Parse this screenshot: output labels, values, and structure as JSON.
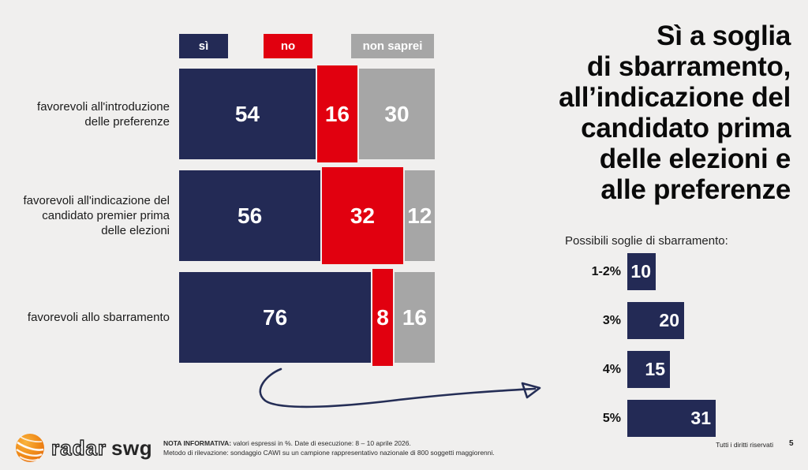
{
  "title": {
    "text": "Sì a soglia\ndi sbarramento,\nall’indicazione del\ncandidato prima\ndelle elezioni e\nalle preferenze"
  },
  "colors": {
    "navy": "#232a55",
    "red": "#e1000f",
    "gray": "#a6a6a6",
    "background": "#f0efee",
    "ink": "#0a0a0a"
  },
  "legend": [
    {
      "label": "sì",
      "color": "#232a55"
    },
    {
      "label": "no",
      "color": "#e1000f"
    },
    {
      "label": "non saprei",
      "color": "#a6a6a6"
    }
  ],
  "chart_data": [
    {
      "type": "bar",
      "subtype": "horizontal-stacked",
      "unit": "%",
      "xlim": [
        0,
        100
      ],
      "categories": [
        "favorevoli all'introduzione\ndelle preferenze",
        "favorevoli all'indicazione del\ncandidato premier prima\ndelle elezioni",
        "favorevoli allo sbarramento"
      ],
      "series": [
        {
          "name": "sì",
          "color": "#232a55",
          "values": [
            54,
            56,
            76
          ]
        },
        {
          "name": "no",
          "color": "#e1000f",
          "values": [
            16,
            32,
            8
          ]
        },
        {
          "name": "non saprei",
          "color": "#a6a6a6",
          "values": [
            30,
            12,
            16
          ]
        }
      ],
      "legend_position": "top"
    },
    {
      "type": "bar",
      "subtype": "horizontal",
      "title": "Possibili soglie di sbarramento:",
      "categories": [
        "1-2%",
        "3%",
        "4%",
        "5%"
      ],
      "values": [
        10,
        20,
        15,
        31
      ],
      "color": "#232a55",
      "unit": "%"
    }
  ],
  "footer": {
    "logo_radar": "radar",
    "logo_swg": "swg",
    "note_label": "NOTA INFORMATIVA:",
    "note_line1": " valori espressi in %. Date di esecuzione: 8 – 10 aprile 2026.",
    "note_line2": "Metodo di rilevazione: sondaggio CAWI su un campione rappresentativo nazionale di 800 soggetti maggiorenni.",
    "rights": "Tutti i diritti riservati",
    "page": "5"
  }
}
